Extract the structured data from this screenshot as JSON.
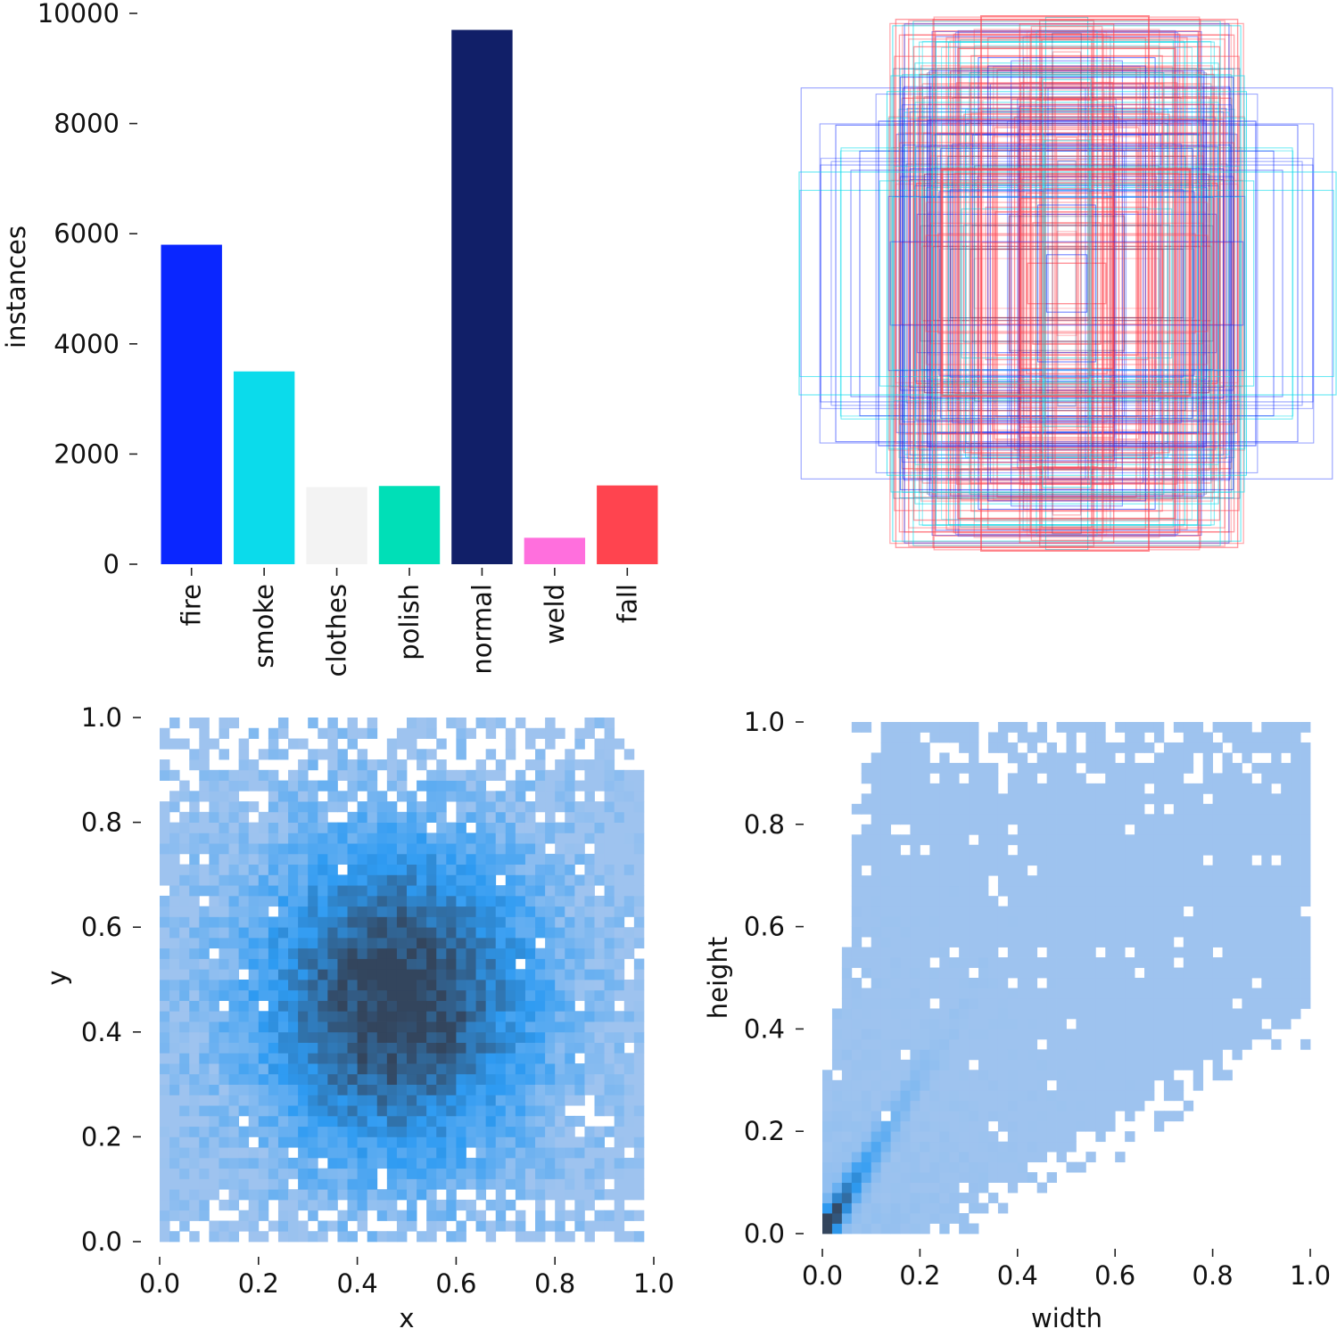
{
  "chart_data": [
    {
      "type": "bar",
      "categories": [
        "fire",
        "smoke",
        "clothes",
        "polish",
        "normal",
        "weld",
        "fall"
      ],
      "values": [
        5800,
        3500,
        1400,
        1420,
        9700,
        480,
        1430
      ],
      "colors": [
        "#0A26FF",
        "#0BDBEB",
        "#F3F3F3",
        "#00DFB7",
        "#111F68",
        "#FF6FDD",
        "#FF444F"
      ],
      "title": "",
      "xlabel": "",
      "ylabel": "instances",
      "ylim": [
        0,
        10000
      ],
      "yticks": [
        "0",
        "2000",
        "4000",
        "6000",
        "8000",
        "10000"
      ],
      "grid": false
    },
    {
      "type": "rectangles",
      "title": "",
      "description_colors": [
        "#FF444F",
        "#0A26FF",
        "#0BDBEB",
        "#111F68"
      ],
      "axes_visible": false
    },
    {
      "type": "heatmap",
      "title": "",
      "xlabel": "x",
      "ylabel": "y",
      "xlim": [
        0,
        1
      ],
      "ylim": [
        0,
        1
      ],
      "xticks": [
        "0.0",
        "0.2",
        "0.4",
        "0.6",
        "0.8",
        "1.0"
      ],
      "yticks": [
        "0.0",
        "0.2",
        "0.4",
        "0.6",
        "0.8",
        "1.0"
      ],
      "bins": 50,
      "density_center": [
        0.48,
        0.46
      ],
      "cmap": [
        "#A8C7EF",
        "#2E9BF2",
        "#33455D"
      ]
    },
    {
      "type": "heatmap",
      "title": "",
      "xlabel": "width",
      "ylabel": "height",
      "xlim": [
        0,
        1
      ],
      "ylim": [
        0,
        1
      ],
      "xticks": [
        "0.0",
        "0.2",
        "0.4",
        "0.6",
        "0.8",
        "1.0"
      ],
      "yticks": [
        "0.0",
        "0.2",
        "0.4",
        "0.6",
        "0.8",
        "1.0"
      ],
      "bins": 50,
      "density_peak": [
        0.04,
        0.06
      ],
      "cmap": [
        "#A8C7EF",
        "#2E9BF2",
        "#33455D"
      ]
    }
  ]
}
